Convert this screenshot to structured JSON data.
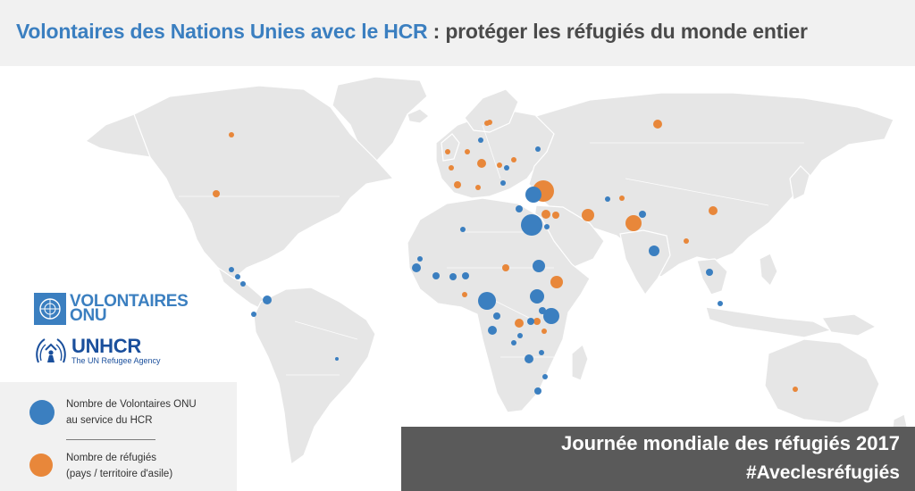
{
  "header": {
    "title_part1": "Volontaires des Nations Unies avec le HCR",
    "title_separator": " : ",
    "title_part2": "protéger les réfugiés du monde entier"
  },
  "logos": {
    "unv_name_line1": "VOLONTAIRES",
    "unv_name_line2": "ONU",
    "unhcr_name": "UNHCR",
    "unhcr_subtitle": "The UN Refugee Agency"
  },
  "legend": {
    "volunteers_line1": "Nombre de Volontaires ONU",
    "volunteers_line2": "au service du HCR",
    "refugees_line1": "Nombre de réfugiés",
    "refugees_line2": "(pays / territoire d'asile)"
  },
  "banner": {
    "title": "Journée mondiale des réfugiés 2017",
    "hashtag": "#Aveclesréfugiés"
  },
  "colors": {
    "volunteers": "#3b7fc0",
    "refugees": "#e8873a",
    "land": "#e6e6e6",
    "accent_blue": "#3b7fc0",
    "banner_bg": "#5a5a5a"
  }
}
